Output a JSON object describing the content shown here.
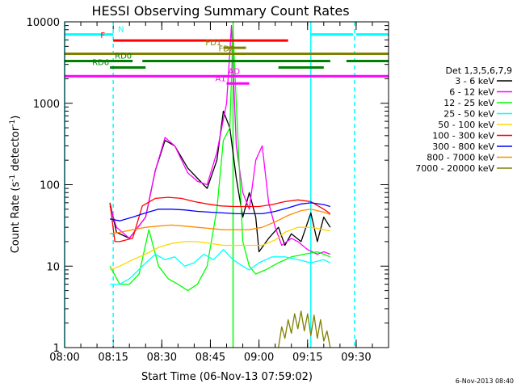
{
  "chart_data": {
    "type": "line",
    "title": "HESSI Observing Summary Count Rates",
    "xlabel": "Start Time (06-Nov-13 07:59:02)",
    "ylabel_main": "Count Rate (s",
    "ylabel_sup1": "-1",
    "ylabel_mid": " detector",
    "ylabel_sup2": "-1",
    "ylabel_end": ")",
    "y_scale": "log",
    "xlim_minutes": [
      0,
      100
    ],
    "ylim": [
      1,
      10000
    ],
    "x_ticks": [
      {
        "m": 0,
        "label": "08:00"
      },
      {
        "m": 15,
        "label": "08:15"
      },
      {
        "m": 30,
        "label": "08:30"
      },
      {
        "m": 45,
        "label": "08:45"
      },
      {
        "m": 60,
        "label": "09:00"
      },
      {
        "m": 75,
        "label": "09:15"
      },
      {
        "m": 90,
        "label": "09:30"
      }
    ],
    "y_ticks": [
      {
        "v": 1,
        "label": "1"
      },
      {
        "v": 10,
        "label": "10"
      },
      {
        "v": 100,
        "label": "100"
      },
      {
        "v": 1000,
        "label": "1000"
      },
      {
        "v": 10000,
        "label": "10000"
      }
    ],
    "legend_title": "Det 1,3,5,6,7,9",
    "legend_position": "right",
    "timestamp": "6-Nov-2013 08:40",
    "series": [
      {
        "name": "3 - 6 keV",
        "color": "#000000",
        "points": [
          [
            14,
            60
          ],
          [
            16,
            26
          ],
          [
            20,
            22
          ],
          [
            25,
            40
          ],
          [
            28,
            150
          ],
          [
            31,
            350
          ],
          [
            34,
            300
          ],
          [
            38,
            160
          ],
          [
            41,
            120
          ],
          [
            44,
            90
          ],
          [
            47,
            200
          ],
          [
            49,
            800
          ],
          [
            51,
            500
          ],
          [
            53,
            120
          ],
          [
            55,
            40
          ],
          [
            57,
            80
          ],
          [
            59,
            40
          ],
          [
            60,
            15
          ],
          [
            63,
            22
          ],
          [
            66,
            30
          ],
          [
            68,
            18
          ],
          [
            70,
            25
          ],
          [
            73,
            20
          ],
          [
            76,
            45
          ],
          [
            78,
            20
          ],
          [
            80,
            40
          ],
          [
            82,
            30
          ]
        ]
      },
      {
        "name": "6 - 12 keV",
        "color": "#ff00ff",
        "points": [
          [
            14,
            55
          ],
          [
            16,
            30
          ],
          [
            20,
            22
          ],
          [
            25,
            40
          ],
          [
            28,
            150
          ],
          [
            31,
            380
          ],
          [
            34,
            300
          ],
          [
            38,
            140
          ],
          [
            41,
            110
          ],
          [
            44,
            100
          ],
          [
            47,
            250
          ],
          [
            50,
            1000
          ],
          [
            51.5,
            9000
          ],
          [
            53,
            300
          ],
          [
            55,
            80
          ],
          [
            57,
            50
          ],
          [
            59,
            200
          ],
          [
            61,
            300
          ],
          [
            63,
            60
          ],
          [
            65,
            30
          ],
          [
            67,
            18
          ],
          [
            70,
            22
          ],
          [
            72,
            20
          ],
          [
            75,
            16
          ],
          [
            78,
            14
          ],
          [
            80,
            15
          ],
          [
            82,
            14
          ]
        ]
      },
      {
        "name": "12 - 25 keV",
        "color": "#00ff00",
        "points": [
          [
            14,
            10
          ],
          [
            17,
            6
          ],
          [
            20,
            6
          ],
          [
            23,
            8
          ],
          [
            26,
            28
          ],
          [
            29,
            10
          ],
          [
            32,
            7
          ],
          [
            35,
            6
          ],
          [
            38,
            5
          ],
          [
            41,
            6
          ],
          [
            44,
            10
          ],
          [
            47,
            50
          ],
          [
            49,
            350
          ],
          [
            51,
            500
          ],
          [
            52,
            8000
          ],
          [
            53,
            1000
          ],
          [
            55,
            20
          ],
          [
            57,
            10
          ],
          [
            59,
            8
          ],
          [
            62,
            9
          ],
          [
            66,
            11
          ],
          [
            70,
            13
          ],
          [
            74,
            14
          ],
          [
            78,
            15
          ],
          [
            80,
            14
          ],
          [
            82,
            13
          ]
        ]
      },
      {
        "name": "25 - 50 keV",
        "color": "#00ffff",
        "points": [
          [
            14,
            6
          ],
          [
            17,
            6
          ],
          [
            20,
            7
          ],
          [
            24,
            10
          ],
          [
            28,
            14
          ],
          [
            31,
            12
          ],
          [
            34,
            13
          ],
          [
            37,
            10
          ],
          [
            40,
            11
          ],
          [
            43,
            14
          ],
          [
            46,
            12
          ],
          [
            49,
            16
          ],
          [
            52,
            12
          ],
          [
            55,
            10
          ],
          [
            57,
            9
          ],
          [
            60,
            11
          ],
          [
            64,
            13
          ],
          [
            68,
            13
          ],
          [
            72,
            12
          ],
          [
            76,
            11
          ],
          [
            80,
            12
          ],
          [
            82,
            11
          ]
        ]
      },
      {
        "name": "50 - 100 keV",
        "color": "#ffd700",
        "points": [
          [
            14,
            9
          ],
          [
            17,
            10
          ],
          [
            21,
            12
          ],
          [
            25,
            14
          ],
          [
            29,
            17
          ],
          [
            33,
            19
          ],
          [
            37,
            20
          ],
          [
            41,
            20
          ],
          [
            45,
            19
          ],
          [
            49,
            18
          ],
          [
            53,
            18
          ],
          [
            57,
            18
          ],
          [
            61,
            18
          ],
          [
            65,
            21
          ],
          [
            68,
            26
          ],
          [
            72,
            30
          ],
          [
            76,
            30
          ],
          [
            80,
            28
          ],
          [
            82,
            27
          ]
        ]
      },
      {
        "name": "100 - 300 keV",
        "color": "#ff0000",
        "points": [
          [
            14,
            60
          ],
          [
            15.5,
            20
          ],
          [
            17,
            20
          ],
          [
            21,
            22
          ],
          [
            24,
            55
          ],
          [
            28,
            68
          ],
          [
            32,
            70
          ],
          [
            36,
            68
          ],
          [
            40,
            62
          ],
          [
            44,
            58
          ],
          [
            48,
            55
          ],
          [
            52,
            54
          ],
          [
            56,
            54
          ],
          [
            60,
            54
          ],
          [
            64,
            57
          ],
          [
            68,
            62
          ],
          [
            72,
            65
          ],
          [
            76,
            62
          ],
          [
            80,
            50
          ],
          [
            82,
            44
          ]
        ]
      },
      {
        "name": "300 - 800 keV",
        "color": "#0000ff",
        "points": [
          [
            14,
            38
          ],
          [
            17,
            36
          ],
          [
            21,
            40
          ],
          [
            25,
            45
          ],
          [
            29,
            50
          ],
          [
            33,
            50
          ],
          [
            37,
            49
          ],
          [
            41,
            47
          ],
          [
            45,
            46
          ],
          [
            49,
            45
          ],
          [
            53,
            44
          ],
          [
            57,
            44
          ],
          [
            61,
            44
          ],
          [
            65,
            47
          ],
          [
            69,
            52
          ],
          [
            73,
            58
          ],
          [
            76,
            60
          ],
          [
            80,
            57
          ],
          [
            82,
            54
          ]
        ]
      },
      {
        "name": "800 - 7000 keV",
        "color": "#ff8c00",
        "points": [
          [
            14,
            25
          ],
          [
            17,
            26
          ],
          [
            21,
            28
          ],
          [
            25,
            30
          ],
          [
            29,
            31
          ],
          [
            33,
            32
          ],
          [
            37,
            31
          ],
          [
            41,
            30
          ],
          [
            45,
            29
          ],
          [
            49,
            28
          ],
          [
            53,
            28
          ],
          [
            57,
            28
          ],
          [
            61,
            30
          ],
          [
            65,
            35
          ],
          [
            69,
            42
          ],
          [
            73,
            48
          ],
          [
            76,
            50
          ],
          [
            80,
            46
          ],
          [
            82,
            43
          ]
        ]
      },
      {
        "name": "7000 - 20000 keV",
        "color": "#808000",
        "points": [
          [
            66,
            1
          ],
          [
            67,
            1.8
          ],
          [
            68,
            1.3
          ],
          [
            69,
            2.2
          ],
          [
            70,
            1.5
          ],
          [
            71,
            2.6
          ],
          [
            72,
            1.7
          ],
          [
            73,
            2.8
          ],
          [
            74,
            1.6
          ],
          [
            75,
            2.6
          ],
          [
            76,
            1.4
          ],
          [
            77,
            2.5
          ],
          [
            78,
            1.3
          ],
          [
            79,
            2.2
          ],
          [
            80,
            1.2
          ],
          [
            81,
            1.6
          ],
          [
            82,
            1
          ]
        ]
      }
    ],
    "bars": [
      {
        "label": "N",
        "color": "#00ffff",
        "level": 7000,
        "label_m": 16,
        "label_side": "right",
        "segments": [
          [
            0,
            15
          ],
          [
            76,
            89
          ],
          [
            90,
            100
          ]
        ]
      },
      {
        "label": "F",
        "color": "#ff0000",
        "level": 5900,
        "label_m": 13,
        "label_side": "left",
        "segments": [
          [
            15,
            69
          ]
        ]
      },
      {
        "label": "FD1",
        "color": "#808000",
        "level": 4800,
        "label_m": 43,
        "label_side": "right",
        "segments": [
          [
            49,
            56
          ]
        ]
      },
      {
        "label": "FD2",
        "color": "#808000",
        "level": 4050,
        "label_m": 47,
        "label_side": "right",
        "segments": [
          [
            0,
            100
          ]
        ]
      },
      {
        "label": "RD0",
        "color": "#008000",
        "level": 3300,
        "label_m": 15,
        "label_side": "right",
        "segments": [
          [
            0,
            21
          ],
          [
            24,
            82
          ],
          [
            87,
            100
          ]
        ]
      },
      {
        "label": "RD6",
        "color": "#008000",
        "level": 2750,
        "label_m": 8,
        "label_side": "right",
        "segments": [
          [
            14,
            25
          ],
          [
            66,
            80
          ]
        ]
      },
      {
        "label": "AD",
        "color": "#ff00ff",
        "level": 2150,
        "label_m": 50,
        "label_side": "right",
        "segments": [
          [
            0,
            100
          ]
        ]
      },
      {
        "label": "A1",
        "color": "#ff00ff",
        "level": 1750,
        "label_m": 46,
        "label_side": "right",
        "segments": [
          [
            50,
            57
          ]
        ]
      }
    ],
    "vlines": [
      {
        "m": 15,
        "color": "#00ffff",
        "style": "dashed"
      },
      {
        "m": 89.5,
        "color": "#00ffff",
        "style": "dashed"
      },
      {
        "m": 0,
        "color": "#00ffff",
        "style": "solid"
      },
      {
        "m": 76,
        "color": "#00ffff",
        "style": "solid"
      },
      {
        "m": 52,
        "color": "#00ff00",
        "style": "solid"
      }
    ]
  }
}
